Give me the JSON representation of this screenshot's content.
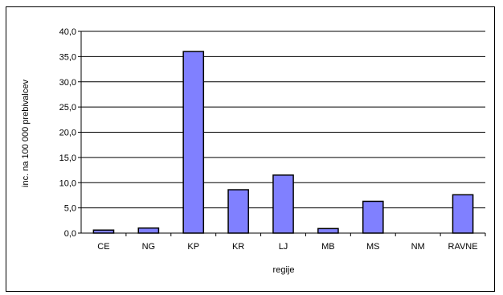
{
  "chart_data": {
    "type": "bar",
    "categories": [
      "CE",
      "NG",
      "KP",
      "KR",
      "LJ",
      "MB",
      "MS",
      "NM",
      "RAVNE"
    ],
    "values": [
      0.6,
      1.0,
      36.0,
      8.6,
      11.5,
      0.9,
      6.3,
      0.0,
      7.6
    ],
    "title": "",
    "xlabel": "regije",
    "ylabel": "inc. na 100 000 prebivalcev",
    "ylim": [
      0,
      40
    ],
    "yticks": [
      "0,0",
      "5,0",
      "10,0",
      "15,0",
      "20,0",
      "25,0",
      "30,0",
      "35,0",
      "40,0"
    ],
    "grid": true,
    "legend": "none",
    "colors": {
      "bar_fill": "#8080ff",
      "bar_stroke": "#000000",
      "grid": "#000000"
    }
  }
}
